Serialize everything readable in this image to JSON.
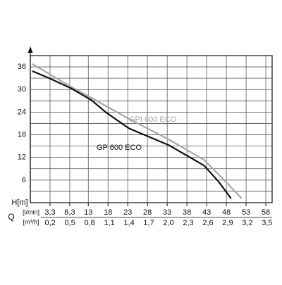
{
  "chart_data": {
    "type": "line",
    "y_label": "H[m]",
    "x_label": "Q",
    "x_unit": "[l/min]",
    "x2_unit": "[m³/h]",
    "xlim": [
      -1.7,
      59.6
    ],
    "ylim": [
      0,
      39
    ],
    "yticks": [
      6,
      12,
      18,
      24,
      30,
      36
    ],
    "ygrid": [
      3,
      6,
      9,
      12,
      15,
      18,
      21,
      24,
      27,
      30,
      33,
      36
    ],
    "xticks": [
      {
        "value": 3.3,
        "label": "3,3"
      },
      {
        "value": 8.3,
        "label": "8,3"
      },
      13,
      18,
      23,
      28,
      33,
      38,
      43,
      48,
      53,
      58
    ],
    "x2lim": [
      -0.102,
      3.576
    ],
    "x2ticks": [
      {
        "value": 0.2,
        "label": "0,2"
      },
      {
        "value": 0.5,
        "label": "0,5"
      },
      {
        "value": 0.8,
        "label": "0,8"
      },
      {
        "value": 1.1,
        "label": "1,1"
      },
      {
        "value": 1.4,
        "label": "1,4"
      },
      {
        "value": 1.7,
        "label": "1,7"
      },
      {
        "value": 2.0,
        "label": "2,0"
      },
      {
        "value": 2.3,
        "label": "2,3"
      },
      {
        "value": 2.6,
        "label": "2,6"
      },
      {
        "value": 2.9,
        "label": "2,9"
      },
      {
        "value": 3.2,
        "label": "3,2"
      },
      {
        "value": 3.5,
        "label": "3,5"
      }
    ],
    "series": [
      {
        "name": "GPI 600 ECO",
        "color": "#a8a8a8",
        "x": [
          -1.2,
          8.5,
          13.8,
          22.8,
          33.5,
          42.4,
          47.8,
          51.9
        ],
        "values": [
          36.8,
          30.8,
          27.8,
          22.5,
          16.7,
          11.3,
          5.6,
          1.1
        ]
      },
      {
        "name": "GP 600 ECO",
        "color": "#111111",
        "x": [
          -1.2,
          3.1,
          8.5,
          13.8,
          17.4,
          23.3,
          33.5,
          42.4,
          46,
          49.2
        ],
        "values": [
          34.9,
          33,
          30.4,
          27.2,
          24,
          19.7,
          15.2,
          9.8,
          5.6,
          1.1
        ]
      }
    ]
  }
}
